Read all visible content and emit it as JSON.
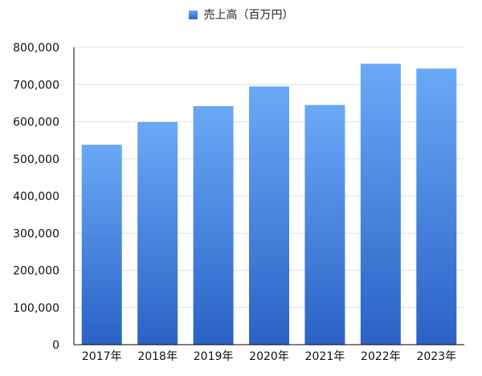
{
  "chart_data": {
    "type": "bar",
    "categories": [
      "2017年",
      "2018年",
      "2019年",
      "2020年",
      "2021年",
      "2022年",
      "2023年"
    ],
    "series": [
      {
        "name": "売上高（百万円）",
        "values": [
          538000,
          599000,
          642000,
          695000,
          645000,
          756000,
          743000
        ]
      }
    ],
    "ylim": [
      0,
      800000
    ],
    "yticks": [
      "0",
      "100,000",
      "200,000",
      "300,000",
      "400,000",
      "500,000",
      "600,000",
      "700,000",
      "800,000"
    ],
    "grid": true,
    "legend": "top-center",
    "colors": {
      "bar_top": "#6aa9f7",
      "bar_bottom": "#2a62c5",
      "grid": "#e0e0e0",
      "axis": "#000000"
    }
  }
}
